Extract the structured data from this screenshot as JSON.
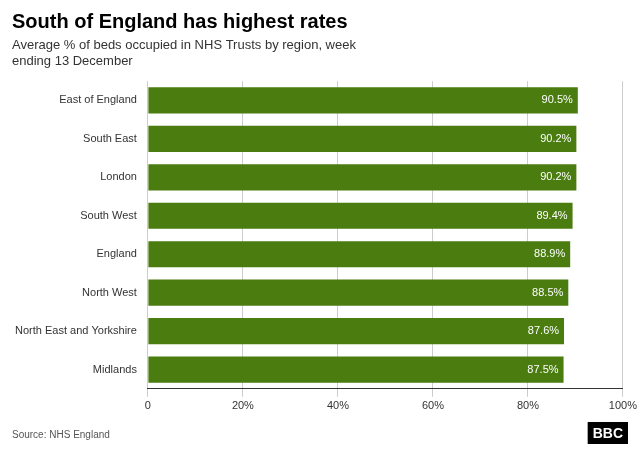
{
  "chart_data": {
    "type": "bar",
    "orientation": "horizontal",
    "title": "South of England has highest rates",
    "subtitle": "Average % of beds occupied in NHS Trusts by region, week\nending 13 December",
    "annotations": [
      "Source: NHS England",
      "BBC"
    ],
    "categories": [
      "Midlands",
      "North East and Yorkshire",
      "North West",
      "England",
      "South West",
      "London",
      "South East",
      "East of England"
    ],
    "values": [
      87.5,
      87.6,
      88.5,
      88.9,
      89.4,
      90.2,
      90.2,
      90.5
    ],
    "value_labels": [
      "87.5%",
      "87.6%",
      "88.5%",
      "88.9%",
      "89.4%",
      "90.2%",
      "90.2%",
      "90.5%"
    ],
    "data_labels": true,
    "color": "#4a7c10",
    "xlim": [
      0,
      100
    ],
    "xticks": [
      0,
      {
        "value": 20,
        "label": "20%"
      },
      {
        "value": 40,
        "label": "40%"
      },
      {
        "value": 60,
        "label": "60%"
      },
      {
        "value": 80,
        "label": "80%"
      },
      {
        "value": 100,
        "label": "100%"
      }
    ],
    "grid": true
  }
}
